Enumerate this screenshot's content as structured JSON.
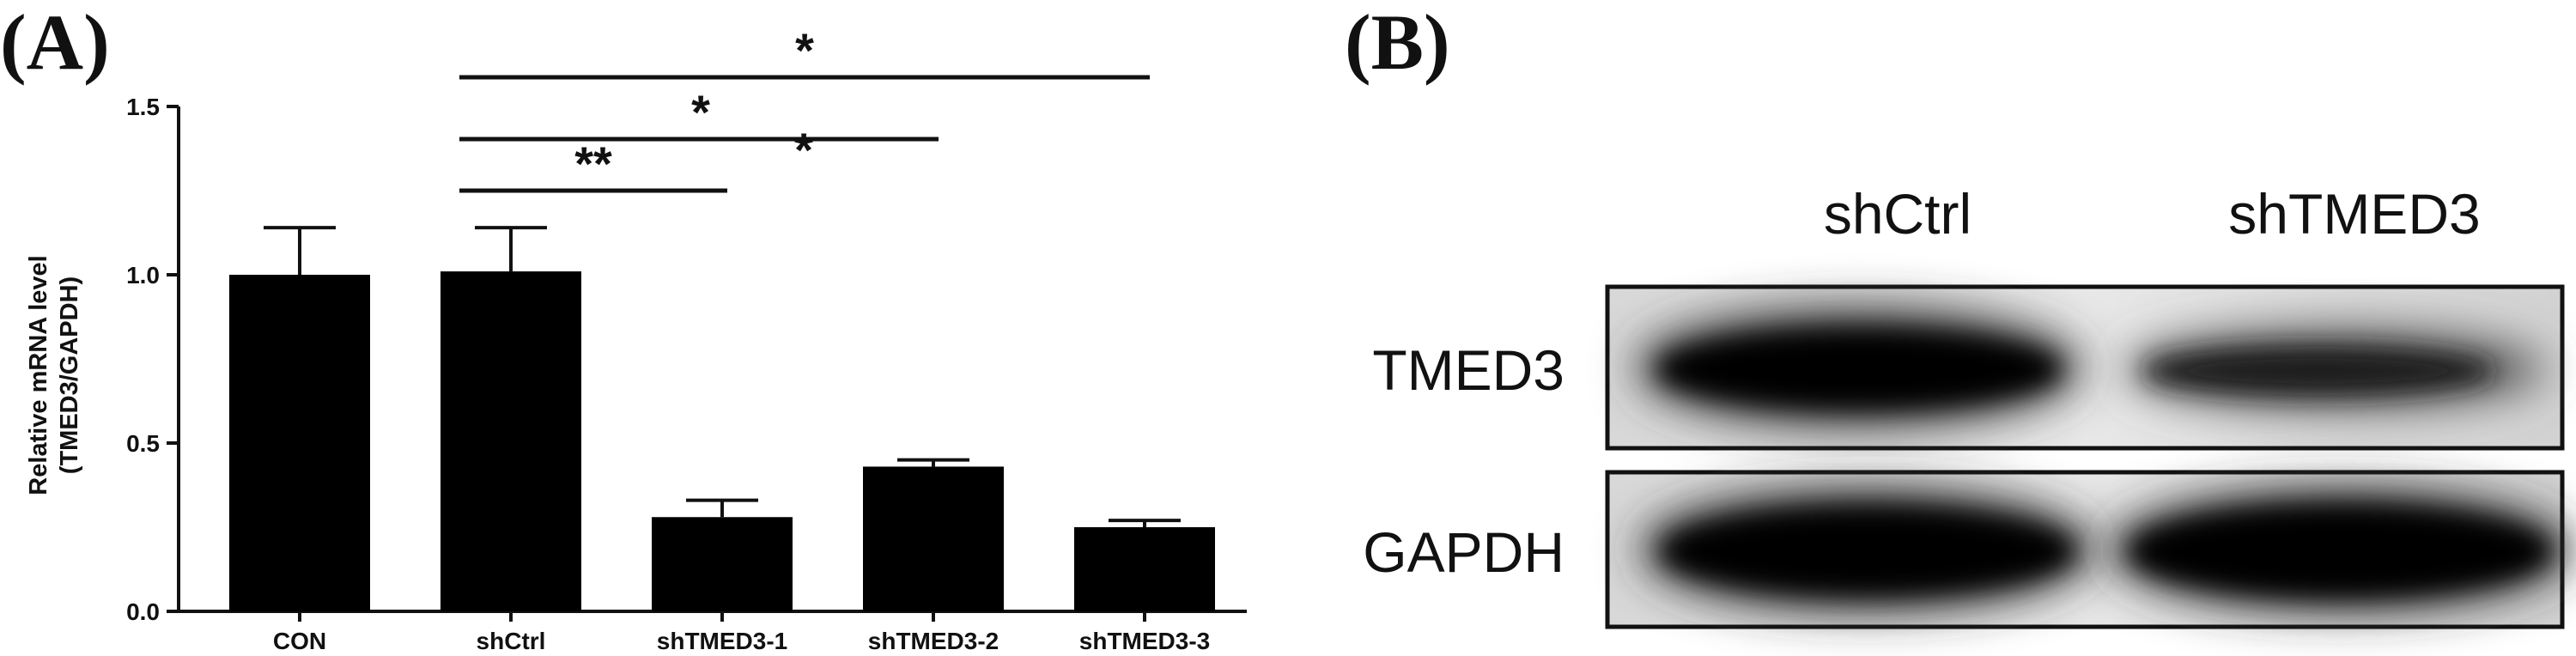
{
  "panel_a": {
    "letter": "(A)"
  },
  "panel_b": {
    "letter": "(B)"
  },
  "chart_data": {
    "type": "bar",
    "title": "",
    "xlabel": "",
    "ylabel_lines": [
      "Relative mRNA level",
      "(TMED3/GAPDH)"
    ],
    "ylim": [
      0,
      1.5
    ],
    "yticks": [
      "0.0",
      "0.5",
      "1.0",
      "1.5"
    ],
    "categories": [
      "CON",
      "shCtrl",
      "shTMED3-1",
      "shTMED3-2",
      "shTMED3-3"
    ],
    "values": [
      1.0,
      1.01,
      0.28,
      0.43,
      0.25
    ],
    "errors": [
      0.14,
      0.13,
      0.05,
      0.02,
      0.02
    ],
    "bar_color": "#000000",
    "significance": [
      {
        "from": "shCtrl",
        "to": "shTMED3-1",
        "label": "**"
      },
      {
        "from": "shCtrl",
        "to": "shTMED3-2",
        "label": "*"
      },
      {
        "from": "shCtrl",
        "to": "shTMED3-3",
        "label": "*"
      }
    ],
    "extra_marks": [
      {
        "label": "*"
      }
    ]
  },
  "blot": {
    "columns": [
      "shCtrl",
      "shTMED3"
    ],
    "rows": [
      "TMED3",
      "GAPDH"
    ]
  }
}
